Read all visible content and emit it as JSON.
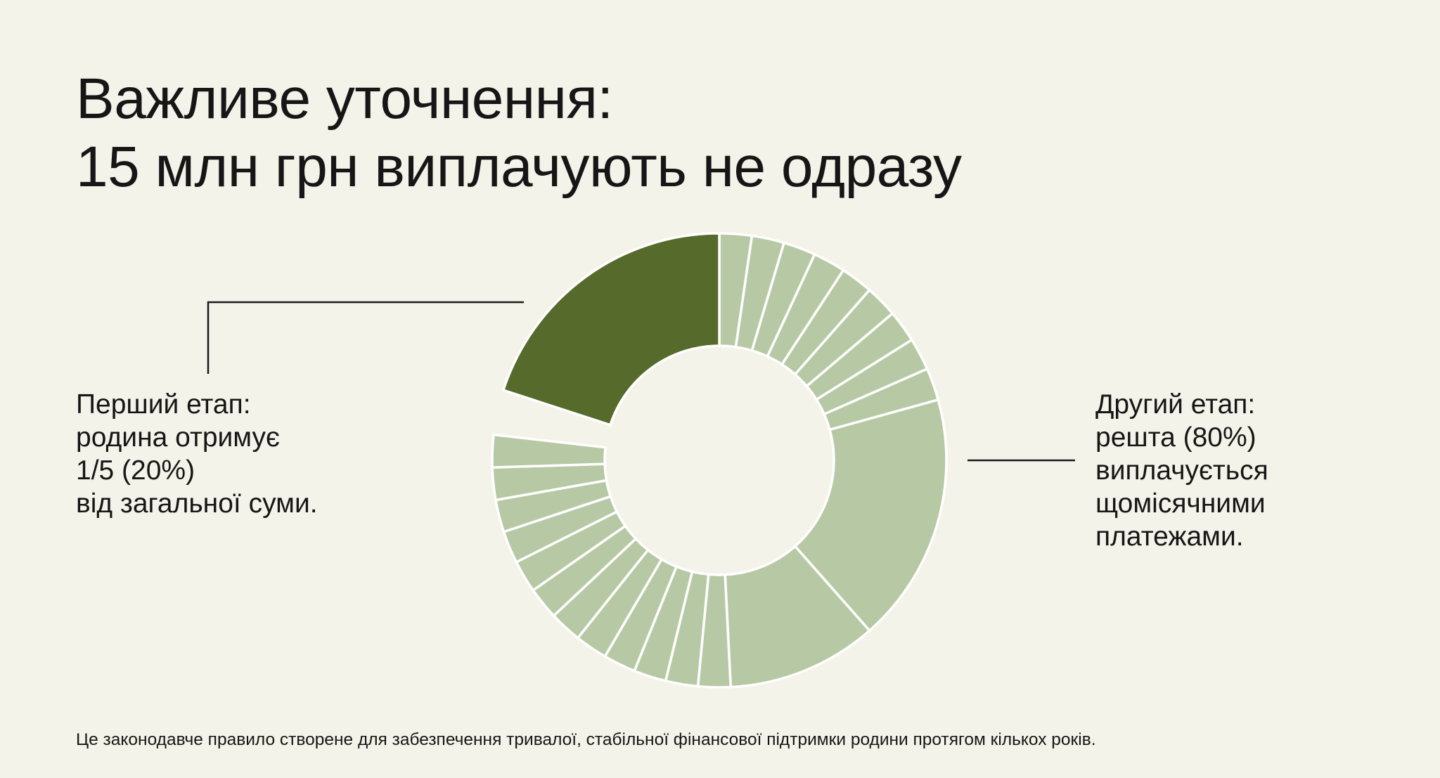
{
  "title": {
    "line1": "Важливе уточнення:",
    "line2": "15 млн грн виплачують не одразу"
  },
  "left_label": {
    "line1": "Перший етап:",
    "line2": "родина отримує",
    "line3": "1/5 (20%)",
    "line4": "від загальної суми."
  },
  "right_label": {
    "line1": "Другий етап:",
    "line2": "решта (80%)",
    "line3": "виплачується",
    "line4": "щомісячними",
    "line5": "платежами."
  },
  "footnote": "Це законодавче правило створене для забезпечення тривалої, стабільної фінансової підтримки родини протягом кількох років.",
  "colors": {
    "background": "#f4f3e9",
    "first_stage": "#566b2b",
    "second_stage": "#b7c9a4",
    "divider": "#ffffff",
    "text": "#161616"
  },
  "chart_data": {
    "type": "pie",
    "style": "donut",
    "slices": [
      {
        "stage": "first",
        "value": 20
      },
      {
        "stage": "second",
        "value": 80
      }
    ],
    "second_stage_segments_percent": [
      2.3,
      2.3,
      2.3,
      2.3,
      2.3,
      2.3,
      2.3,
      2.3,
      2.3,
      17.8,
      10.7,
      2.3,
      2.3,
      2.3,
      2.3,
      2.3,
      2.3,
      2.3,
      2.3,
      2.3,
      2.3,
      2.3,
      2.3
    ]
  }
}
